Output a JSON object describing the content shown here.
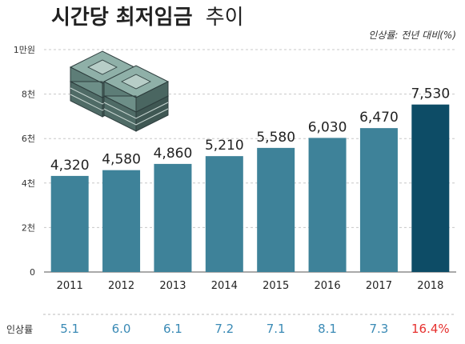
{
  "title_main": "시간당 최저임금",
  "title_sub": "추이",
  "note": "인상률: 전년 대비(%)",
  "colors": {
    "bar": "#3e8299",
    "bar_highlight": "#0d4c66",
    "rate_normal": "#3a8ab5",
    "rate_highlight": "#e6302e",
    "grid": "#c8c8c8",
    "text": "#333333"
  },
  "icon": "money-stack-icon",
  "chart_data": {
    "type": "bar",
    "title": "시간당 최저임금 추이",
    "categories": [
      "2011",
      "2012",
      "2013",
      "2014",
      "2015",
      "2016",
      "2017",
      "2018"
    ],
    "values": [
      4320,
      4580,
      4860,
      5210,
      5580,
      6030,
      6470,
      7530
    ],
    "value_labels": [
      "4,320",
      "4,580",
      "4,860",
      "5,210",
      "5,580",
      "6,030",
      "6,470",
      "7,530"
    ],
    "highlight_index": 7,
    "ylim": [
      0,
      10000
    ],
    "yticks": [
      {
        "value": 0,
        "label": "0"
      },
      {
        "value": 2000,
        "label": "2천"
      },
      {
        "value": 4000,
        "label": "4천"
      },
      {
        "value": 6000,
        "label": "6천"
      },
      {
        "value": 8000,
        "label": "8천"
      },
      {
        "value": 10000,
        "label": "1만원"
      }
    ],
    "grid": true,
    "rate_label": "인상률",
    "rates": [
      "5.1",
      "6.0",
      "6.1",
      "7.2",
      "7.1",
      "8.1",
      "7.3",
      "16.4%"
    ]
  }
}
